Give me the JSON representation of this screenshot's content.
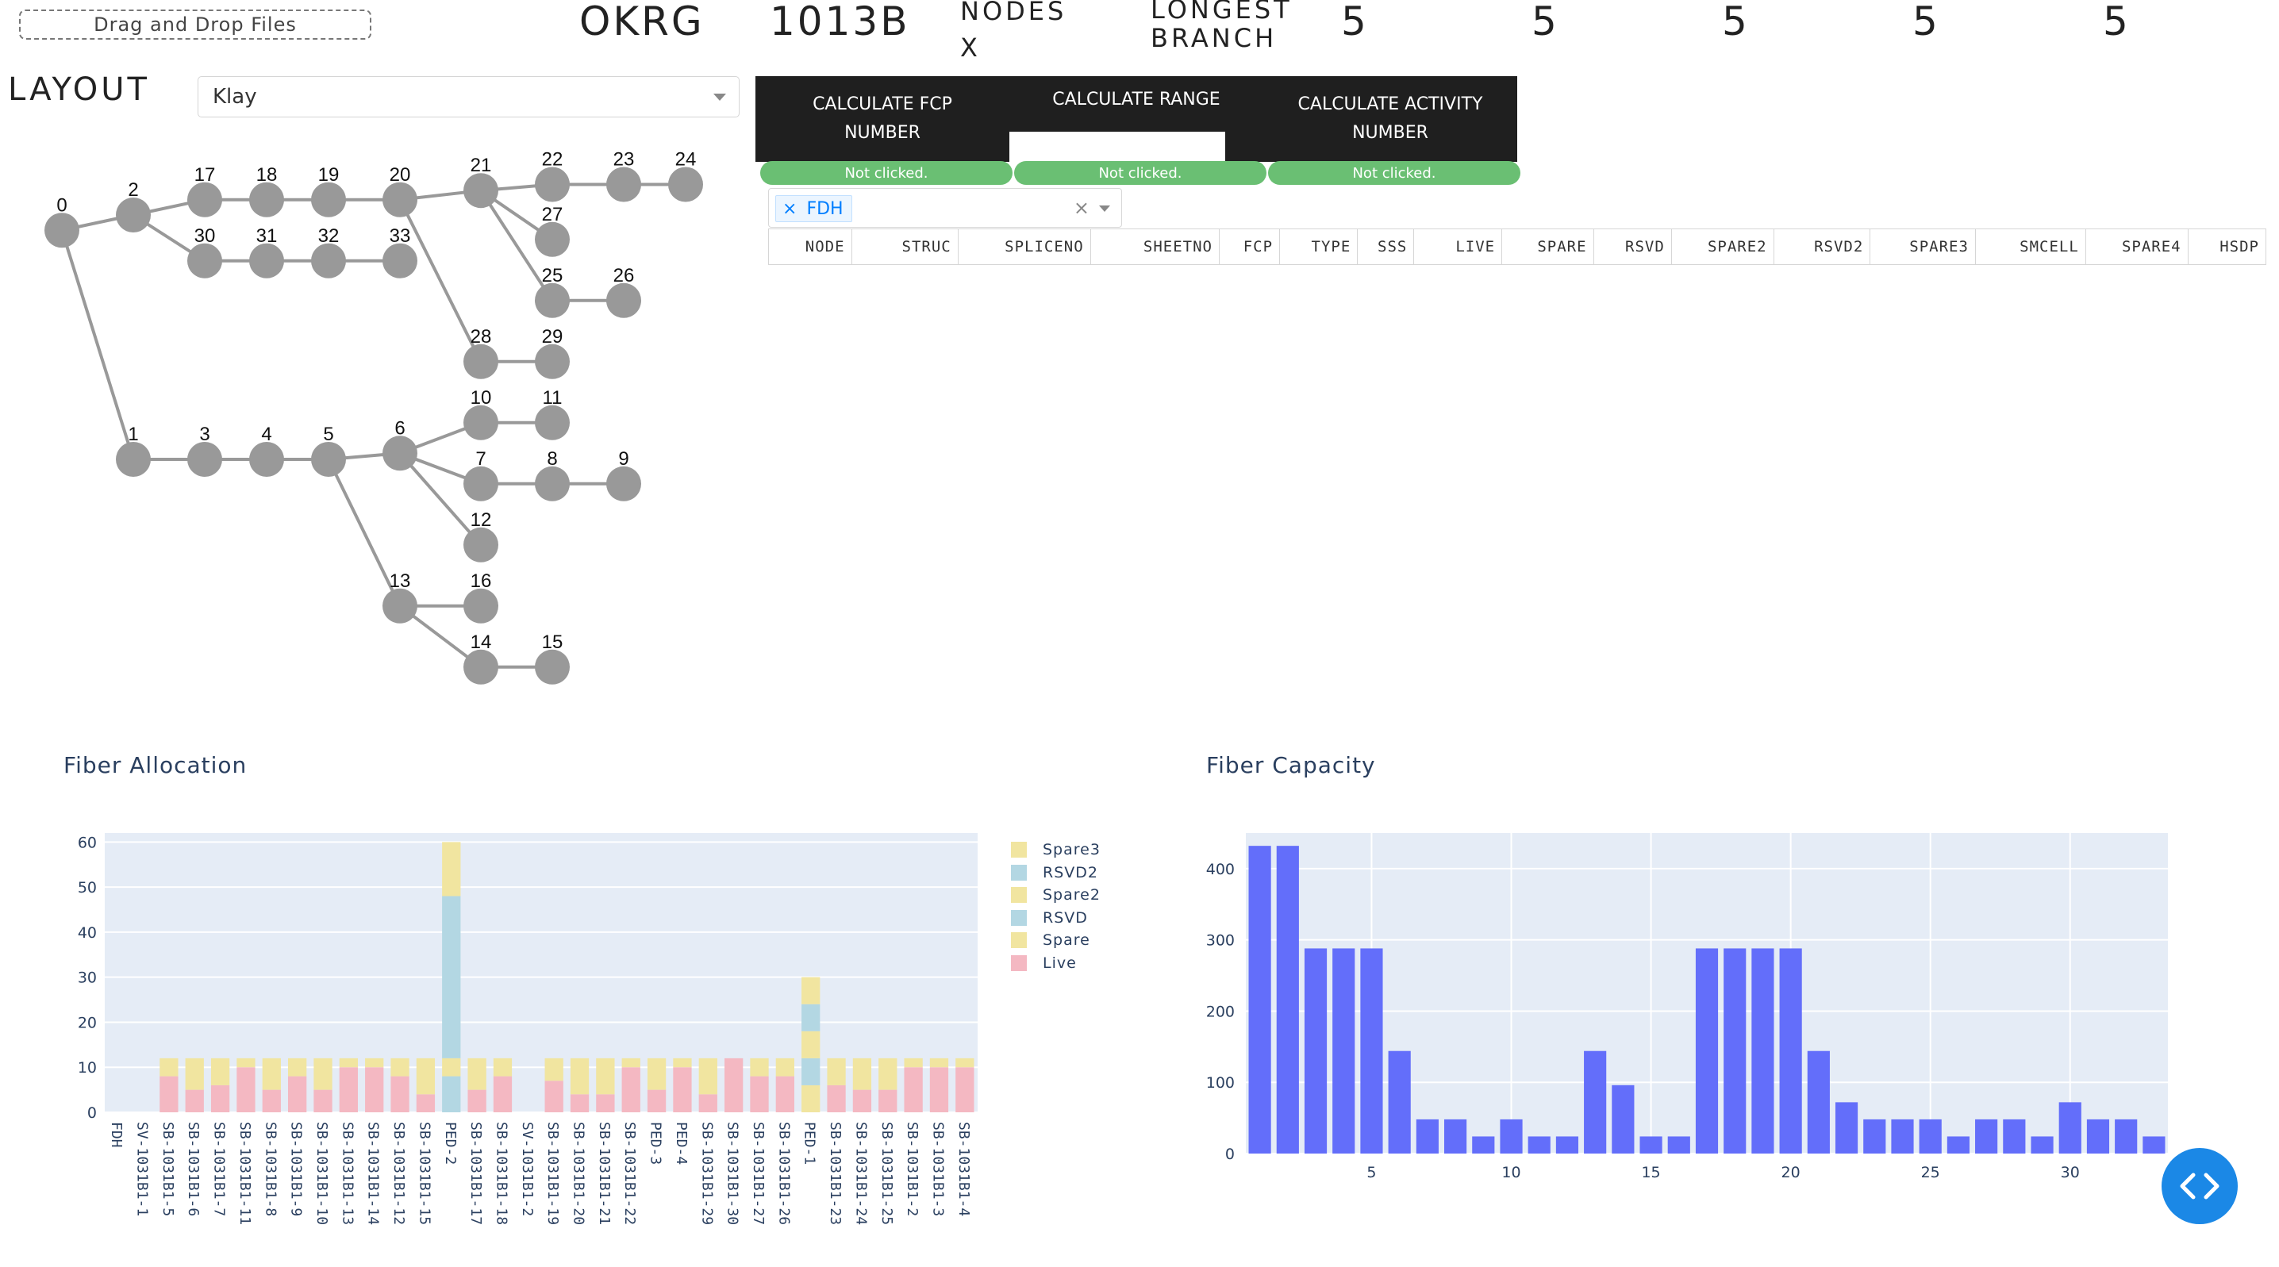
{
  "upload": {
    "label": "Drag and Drop Files"
  },
  "header": {
    "okrg": "OKRG",
    "value": "1013B",
    "nodes_label": "NODES",
    "nodes_x": "X",
    "longest_branch_label": "LONGEST BRANCH",
    "stats": [
      "5",
      "5",
      "5",
      "5",
      "5"
    ]
  },
  "layout": {
    "label": "LAYOUT",
    "selected": "Klay"
  },
  "buttons": {
    "fcp": {
      "label": "CALCULATE FCP NUMBER",
      "status": "Not clicked."
    },
    "range": {
      "label": "CALCULATE RANGE",
      "status": "Not clicked."
    },
    "activity": {
      "label": "CALCULATE ACTIVITY NUMBER",
      "status": "Not clicked."
    }
  },
  "filter": {
    "tag": "FDH"
  },
  "table": {
    "columns": [
      "NODE",
      "STRUC",
      "SPLICENO",
      "SHEETNO",
      "FCP",
      "TYPE",
      "SSS",
      "LIVE",
      "SPARE",
      "RSVD",
      "SPARE2",
      "RSVD2",
      "SPARE3",
      "SMCELL",
      "SPARE4",
      "HSDP"
    ]
  },
  "graph": {
    "node_color": "#999999",
    "edge_color": "#999999",
    "nodes": [
      {
        "id": "0",
        "col": 0,
        "row": 2.5
      },
      {
        "id": "2",
        "col": 1,
        "row": 2
      },
      {
        "id": "17",
        "col": 2,
        "row": 1.5
      },
      {
        "id": "18",
        "col": 3,
        "row": 1.5
      },
      {
        "id": "19",
        "col": 4,
        "row": 1.5
      },
      {
        "id": "20",
        "col": 5,
        "row": 1.5
      },
      {
        "id": "30",
        "col": 2,
        "row": 3.5
      },
      {
        "id": "31",
        "col": 3,
        "row": 3.5
      },
      {
        "id": "32",
        "col": 4,
        "row": 3.5
      },
      {
        "id": "33",
        "col": 5,
        "row": 3.5
      },
      {
        "id": "21",
        "col": 6,
        "row": 1.2
      },
      {
        "id": "22",
        "col": 7,
        "row": 1
      },
      {
        "id": "23",
        "col": 8,
        "row": 1
      },
      {
        "id": "24",
        "col": 9,
        "row": 1
      },
      {
        "id": "27",
        "col": 7,
        "row": 2.8
      },
      {
        "id": "25",
        "col": 7,
        "row": 4.8
      },
      {
        "id": "26",
        "col": 8,
        "row": 4.8
      },
      {
        "id": "28",
        "col": 6,
        "row": 6.8
      },
      {
        "id": "29",
        "col": 7,
        "row": 6.8
      },
      {
        "id": "1",
        "col": 1,
        "row": 10
      },
      {
        "id": "3",
        "col": 2,
        "row": 10
      },
      {
        "id": "4",
        "col": 3,
        "row": 10
      },
      {
        "id": "5",
        "col": 4,
        "row": 10
      },
      {
        "id": "6",
        "col": 5,
        "row": 9.8
      },
      {
        "id": "10",
        "col": 6,
        "row": 8.8
      },
      {
        "id": "11",
        "col": 7,
        "row": 8.8
      },
      {
        "id": "7",
        "col": 6,
        "row": 10.8
      },
      {
        "id": "8",
        "col": 7,
        "row": 10.8
      },
      {
        "id": "9",
        "col": 8,
        "row": 10.8
      },
      {
        "id": "12",
        "col": 6,
        "row": 12.8
      },
      {
        "id": "13",
        "col": 5,
        "row": 14.8
      },
      {
        "id": "16",
        "col": 6,
        "row": 14.8
      },
      {
        "id": "14",
        "col": 6,
        "row": 16.8
      },
      {
        "id": "15",
        "col": 7,
        "row": 16.8
      }
    ],
    "edges": [
      [
        "0",
        "2"
      ],
      [
        "0",
        "1"
      ],
      [
        "2",
        "17"
      ],
      [
        "2",
        "30"
      ],
      [
        "17",
        "18"
      ],
      [
        "18",
        "19"
      ],
      [
        "19",
        "20"
      ],
      [
        "20",
        "21"
      ],
      [
        "30",
        "31"
      ],
      [
        "31",
        "32"
      ],
      [
        "32",
        "33"
      ],
      [
        "21",
        "22"
      ],
      [
        "22",
        "23"
      ],
      [
        "23",
        "24"
      ],
      [
        "21",
        "27"
      ],
      [
        "21",
        "25"
      ],
      [
        "25",
        "26"
      ],
      [
        "20",
        "28"
      ],
      [
        "28",
        "29"
      ],
      [
        "1",
        "3"
      ],
      [
        "3",
        "4"
      ],
      [
        "4",
        "5"
      ],
      [
        "5",
        "6"
      ],
      [
        "6",
        "10"
      ],
      [
        "10",
        "11"
      ],
      [
        "6",
        "7"
      ],
      [
        "7",
        "8"
      ],
      [
        "8",
        "9"
      ],
      [
        "6",
        "12"
      ],
      [
        "5",
        "13"
      ],
      [
        "13",
        "16"
      ],
      [
        "13",
        "14"
      ],
      [
        "14",
        "15"
      ]
    ]
  },
  "chart_data": [
    {
      "type": "bar",
      "stacked": true,
      "title": "Fiber Allocation",
      "categories": [
        "FDH",
        "SV-1031B1-1",
        "SB-1031B1-5",
        "SB-1031B1-6",
        "SB-1031B1-7",
        "SB-1031B1-11",
        "SB-1031B1-8",
        "SB-1031B1-9",
        "SB-1031B1-10",
        "SB-1031B1-13",
        "SB-1031B1-14",
        "SB-1031B1-12",
        "SB-1031B1-15",
        "PED-2",
        "SB-1031B1-17",
        "SB-1031B1-18",
        "SV-1031B1-2",
        "SB-1031B1-19",
        "SB-1031B1-20",
        "SB-1031B1-21",
        "SB-1031B1-22",
        "PED-3",
        "PED-4",
        "SB-1031B1-29",
        "SB-1031B1-30",
        "SB-1031B1-27",
        "SB-1031B1-26",
        "PED-1",
        "SB-1031B1-23",
        "SB-1031B1-24",
        "SB-1031B1-25",
        "SB-1031B1-2",
        "SB-1031B1-3",
        "SB-1031B1-4"
      ],
      "ylim": [
        0,
        62
      ],
      "yticks": [
        0,
        10,
        20,
        30,
        40,
        50,
        60
      ],
      "legend_position": "right",
      "series": [
        {
          "name": "Live",
          "color": "#f4b8c2",
          "values": [
            0,
            0,
            8,
            5,
            6,
            10,
            5,
            8,
            5,
            10,
            10,
            8,
            4,
            0,
            5,
            8,
            0,
            7,
            4,
            4,
            10,
            5,
            10,
            4,
            12,
            8,
            8,
            0,
            6,
            5,
            5,
            10,
            10,
            10
          ]
        },
        {
          "name": "Spare",
          "color": "#f1e5a0",
          "values": [
            0,
            0,
            4,
            7,
            6,
            2,
            7,
            4,
            7,
            2,
            2,
            4,
            8,
            0,
            7,
            4,
            0,
            5,
            8,
            8,
            2,
            7,
            2,
            8,
            0,
            4,
            4,
            6,
            6,
            7,
            7,
            2,
            2,
            2
          ]
        },
        {
          "name": "RSVD",
          "color": "#b3d7e3",
          "values": [
            0,
            0,
            0,
            0,
            0,
            0,
            0,
            0,
            0,
            0,
            0,
            0,
            0,
            8,
            0,
            0,
            0,
            0,
            0,
            0,
            0,
            0,
            0,
            0,
            0,
            0,
            0,
            6,
            0,
            0,
            0,
            0,
            0,
            0
          ]
        },
        {
          "name": "Spare2",
          "color": "#f1e5a0",
          "values": [
            0,
            0,
            0,
            0,
            0,
            0,
            0,
            0,
            0,
            0,
            0,
            0,
            0,
            4,
            0,
            0,
            0,
            0,
            0,
            0,
            0,
            0,
            0,
            0,
            0,
            0,
            0,
            6,
            0,
            0,
            0,
            0,
            0,
            0
          ]
        },
        {
          "name": "RSVD2",
          "color": "#b3d7e3",
          "values": [
            0,
            0,
            0,
            0,
            0,
            0,
            0,
            0,
            0,
            0,
            0,
            0,
            0,
            36,
            0,
            0,
            0,
            0,
            0,
            0,
            0,
            0,
            0,
            0,
            0,
            0,
            0,
            6,
            0,
            0,
            0,
            0,
            0,
            0
          ]
        },
        {
          "name": "Spare3",
          "color": "#f1e5a0",
          "values": [
            0,
            0,
            0,
            0,
            0,
            0,
            0,
            0,
            0,
            0,
            0,
            0,
            0,
            12,
            0,
            0,
            0,
            0,
            0,
            0,
            0,
            0,
            0,
            0,
            0,
            0,
            0,
            6,
            0,
            0,
            0,
            0,
            0,
            0
          ]
        }
      ]
    },
    {
      "type": "bar",
      "title": "Fiber Capacity",
      "x": [
        1,
        2,
        3,
        4,
        5,
        6,
        7,
        8,
        9,
        10,
        11,
        12,
        13,
        14,
        15,
        16,
        17,
        18,
        19,
        20,
        21,
        22,
        23,
        24,
        25,
        26,
        27,
        28,
        29,
        30,
        31,
        32,
        33
      ],
      "values": [
        432,
        432,
        288,
        288,
        288,
        144,
        48,
        48,
        24,
        48,
        24,
        24,
        144,
        96,
        24,
        24,
        288,
        288,
        288,
        288,
        144,
        72,
        48,
        48,
        48,
        24,
        48,
        48,
        24,
        72,
        48,
        48,
        24
      ],
      "color": "#636efa",
      "xticks": [
        5,
        10,
        15,
        20,
        25,
        30
      ],
      "yticks": [
        0,
        100,
        200,
        300,
        400
      ],
      "ylim": [
        0,
        450
      ],
      "xlim": [
        0.5,
        33.5
      ]
    }
  ]
}
